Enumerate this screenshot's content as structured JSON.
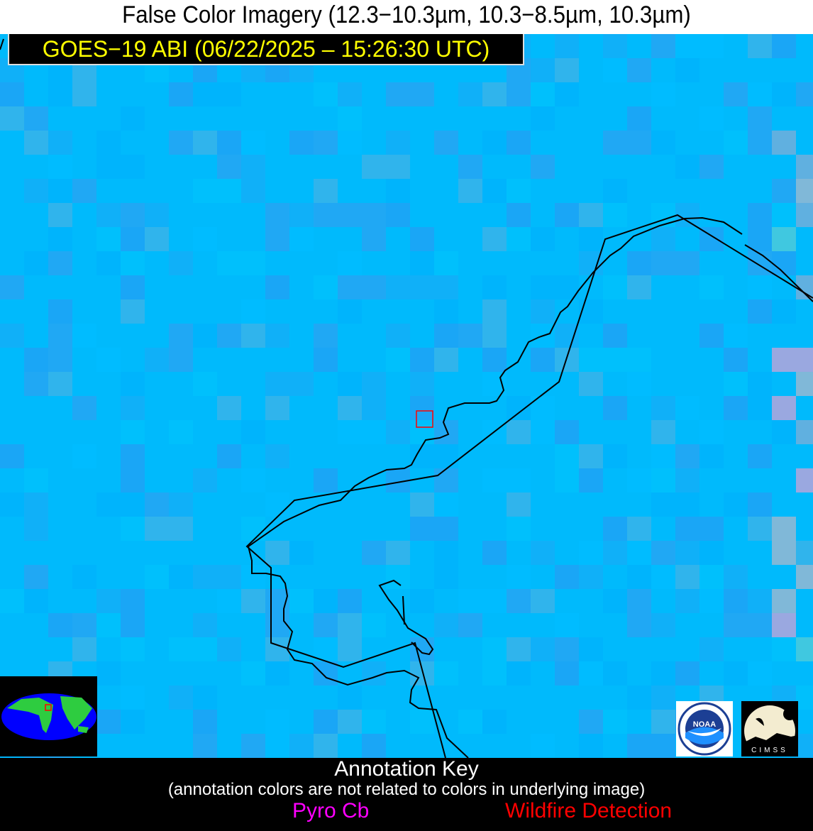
{
  "title": "False Color Imagery (12.3−10.3µm, 10.3−8.5µm, 10.3µm)",
  "satellite_label": "GOES−19 ABI (06/22/2025 – 15:26:30 UTC)",
  "colors": {
    "background_imagery": "#00bafc",
    "coastline": "#000000",
    "detection_box": "#ff0000",
    "pyro_cb": "#ff00ff",
    "wildfire": "#ff0000",
    "label_text": "#ffff00"
  },
  "logos": {
    "noaa": "NOAA",
    "cimss": "CIMSS"
  },
  "annotation_key": {
    "title": "Annotation Key",
    "note": "(annotation colors are not related to colors in underlying image)",
    "items": [
      "Pyro Cb",
      "Wildfire Detection"
    ]
  }
}
